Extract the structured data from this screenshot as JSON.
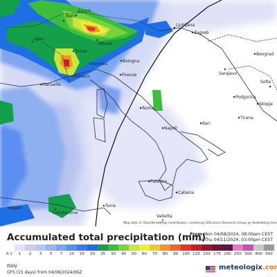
{
  "title": "Accumulated total precipitation (mm)",
  "period": {
    "from_label": "From",
    "from_value": "Mon 04/08/2024, 08:00am CEST",
    "to_label": "to",
    "to_value": "Thu 04/11/2024, 03:00pm CEST"
  },
  "attribution": "Map data © OpenStreetMap contributors, rendering GIScience Research Group @ Heidelberg University",
  "legend": {
    "ticks": [
      "0.1",
      "1",
      "2",
      "3",
      "5",
      "7",
      "10",
      "15",
      "20",
      "25",
      "30",
      "40",
      "50",
      "60",
      "70",
      "80",
      "90",
      "100",
      "125",
      "150",
      "175",
      "200",
      "250",
      "300",
      "400",
      "500"
    ],
    "colors": [
      "#ffffff",
      "#e4e4f7",
      "#cdcdf0",
      "#b5c6f0",
      "#98b4f0",
      "#7aa2ef",
      "#5a8df0",
      "#3b78f0",
      "#1e6ee6",
      "#14a04b",
      "#3cbe3c",
      "#78d23c",
      "#c8e63c",
      "#f0f032",
      "#f0c828",
      "#f09628",
      "#f06428",
      "#e63228",
      "#c81e28",
      "#a01428",
      "#781432",
      "#5a1446",
      "#e678c8",
      "#c850b4",
      "#c8c8c8",
      "#9a9a9a"
    ]
  },
  "region": "Italy",
  "model": "GFS (15 days) from 04/08/2024/06Z",
  "brand": {
    "name": "meteologix",
    "domain": ".com",
    "flag_icon": "us-flag-icon"
  },
  "cities": [
    "Bern",
    "Zürich",
    "Lyon",
    "Milano",
    "Torino",
    "Genova",
    "Monaco",
    "Bologna",
    "Firenze",
    "Marseille",
    "Roma",
    "Napoli",
    "Bari",
    "Palermo",
    "Catania",
    "Ljubljana",
    "Zagreb",
    "Sarajevo",
    "Beograd",
    "Podgorica",
    "Tirana",
    "Skopje",
    "Algier",
    "Constantine",
    "Tunis",
    "Valletta",
    "Sofia"
  ]
}
